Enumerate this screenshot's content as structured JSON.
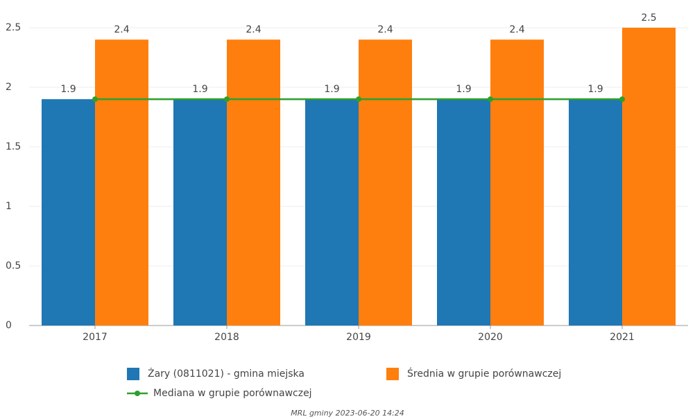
{
  "chart_data": {
    "type": "bar",
    "categories": [
      "2017",
      "2018",
      "2019",
      "2020",
      "2021"
    ],
    "series": [
      {
        "name": "Żary (0811021) - gmina miejska",
        "color": "#1f77b4",
        "values": [
          1.9,
          1.9,
          1.9,
          1.9,
          1.9
        ]
      },
      {
        "name": "Średnia w grupie porównawczej",
        "color": "#ff7f0e",
        "values": [
          2.4,
          2.4,
          2.4,
          2.4,
          2.5
        ]
      },
      {
        "name": "Mediana w grupie porównawczej",
        "color": "#2ca02c",
        "type": "line",
        "values": [
          1.9,
          1.9,
          1.9,
          1.9,
          1.9
        ]
      }
    ],
    "ylim": [
      0,
      2.5
    ],
    "yticks": [
      0,
      0.5,
      1,
      1.5,
      2,
      2.5
    ],
    "grid": true,
    "note": "MRL gminy 2023-06-20 14:24"
  }
}
